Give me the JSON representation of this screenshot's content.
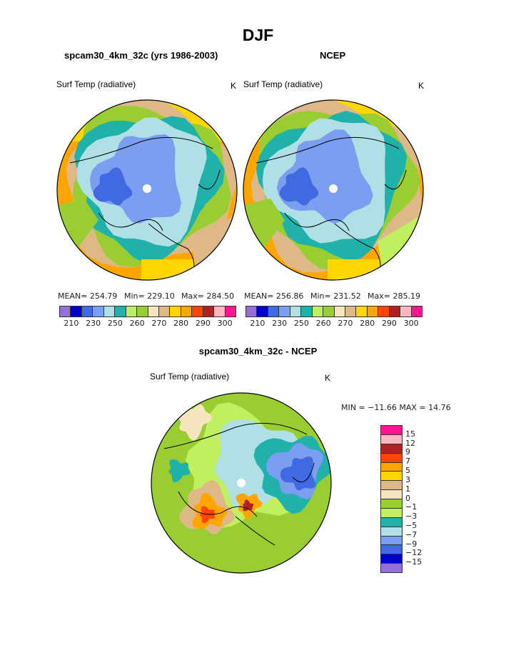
{
  "title": "DJF",
  "colors": {
    "levels_palette": [
      "#9370DB",
      "#0000CD",
      "#4169E1",
      "#7B9EF0",
      "#B0E0E6",
      "#20B2AA",
      "#C0F060",
      "#9ACD32",
      "#F5E6C0",
      "#DEB887",
      "#FFD700",
      "#FFA500",
      "#FF4500",
      "#B22222",
      "#FFB6C1",
      "#FF1493"
    ]
  },
  "panels": [
    {
      "header": "spcam30_4km_32c (yrs 1986-2003)",
      "variable": "Surf Temp (radiative)",
      "units": "K",
      "mean": "MEAN= 254.79",
      "min": "Min= 229.10",
      "max": "Max= 284.50",
      "colorbar_labels": [
        "210",
        "230",
        "250",
        "260",
        "270",
        "280",
        "290",
        "300"
      ]
    },
    {
      "header": "NCEP",
      "variable": "Surf Temp (radiative)",
      "units": "K",
      "mean": "MEAN= 256.86",
      "min": "Min= 231.52",
      "max": "Max= 285.19",
      "colorbar_labels": [
        "210",
        "230",
        "250",
        "260",
        "270",
        "280",
        "290",
        "300"
      ]
    }
  ],
  "diff": {
    "header": "spcam30_4km_32c - NCEP",
    "variable": "Surf Temp (radiative)",
    "units": "K",
    "minmax": "MIN = −11.66 MAX =   14.76",
    "colorbar_labels": [
      "15",
      "12",
      "9",
      "7",
      "5",
      "3",
      "1",
      "0",
      "−1",
      "−3",
      "−5",
      "−7",
      "−9",
      "−12",
      "−15"
    ]
  }
}
